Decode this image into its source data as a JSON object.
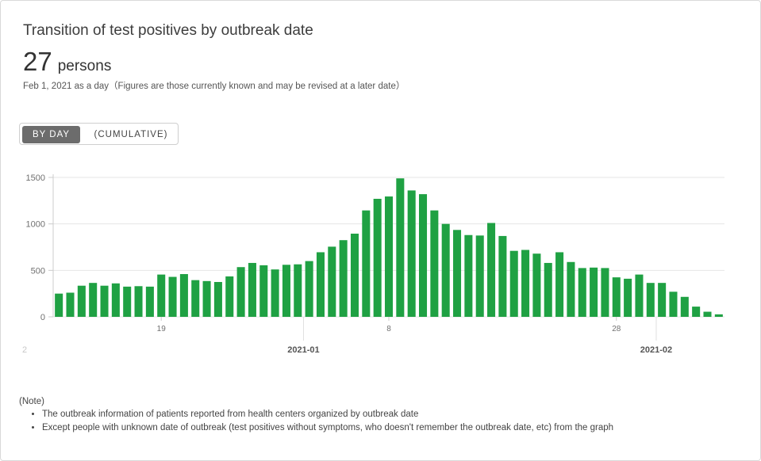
{
  "card": {
    "title": "Transition of test positives by outbreak date",
    "value": "27",
    "unit": "persons",
    "date_note": "Feb 1, 2021 as a day（Figures are those currently known and may be revised at a later date）"
  },
  "toggle": {
    "by_day": "BY DAY",
    "cumulative": "(CUMULATIVE)"
  },
  "notes": {
    "heading": "(Note)",
    "items": [
      "The outbreak information of patients reported from health centers organized by outbreak date",
      "Except people with unknown date of outbreak (test positives without symptoms, who doesn't remember the outbreak date, etc) from the graph"
    ]
  },
  "colors": {
    "bar": "#1fa143",
    "grid": "#e6e6e6",
    "axis_text": "#707070"
  },
  "chart_data": {
    "type": "bar",
    "title": "",
    "xlabel": "",
    "ylabel": "",
    "ylim": [
      0,
      1500
    ],
    "yticks": [
      0,
      500,
      1000,
      1500
    ],
    "grid": true,
    "x_start": "2020-12-10",
    "x_ticks": [
      {
        "date": "2020-12-19",
        "label": "19"
      },
      {
        "date": "2021-01-08",
        "label": "8"
      },
      {
        "date": "2021-01-28",
        "label": "28"
      }
    ],
    "month_labels": [
      {
        "date": "2020-12",
        "label": "2"
      },
      {
        "date": "2021-01",
        "label": "2021-01"
      },
      {
        "date": "2021-02",
        "label": "2021-02"
      }
    ],
    "values": [
      250,
      260,
      335,
      365,
      335,
      360,
      325,
      330,
      325,
      455,
      430,
      460,
      395,
      385,
      375,
      435,
      535,
      580,
      555,
      510,
      560,
      565,
      600,
      695,
      755,
      825,
      895,
      1145,
      1270,
      1295,
      1490,
      1360,
      1320,
      1145,
      1000,
      935,
      880,
      875,
      1010,
      870,
      710,
      720,
      680,
      580,
      695,
      590,
      525,
      530,
      525,
      425,
      410,
      455,
      365,
      365,
      270,
      215,
      110,
      55,
      27
    ]
  }
}
